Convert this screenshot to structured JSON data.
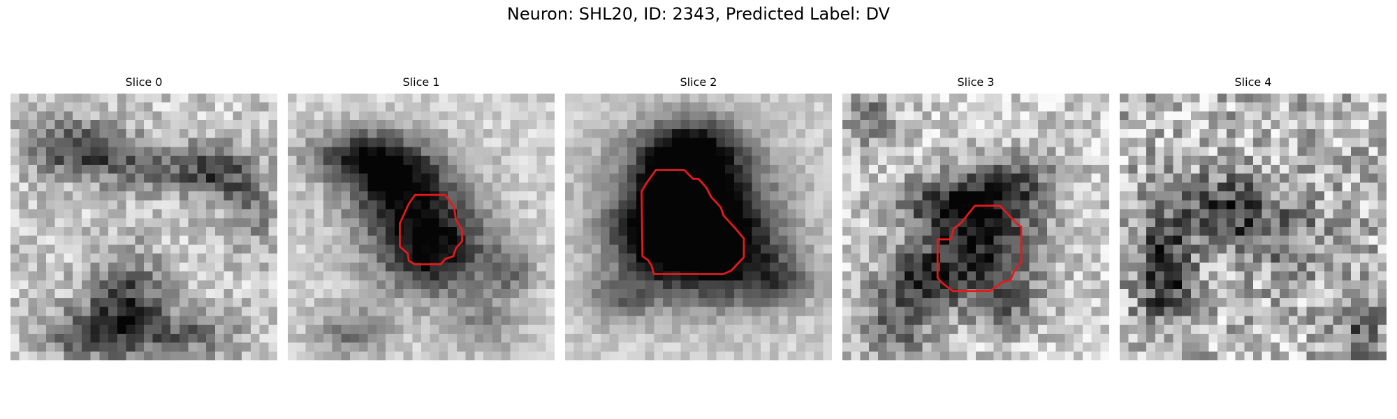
{
  "figure": {
    "title": "Neuron: SHL20, ID: 2343, Predicted Label: DV"
  },
  "panels": [
    {
      "title": "Slice 0",
      "has_contour": false
    },
    {
      "title": "Slice 1",
      "has_contour": true
    },
    {
      "title": "Slice 2",
      "has_contour": true
    },
    {
      "title": "Slice 3",
      "has_contour": true
    },
    {
      "title": "Slice 4",
      "has_contour": false
    }
  ],
  "colors": {
    "contour": "#e41a1c",
    "colormap": "grayscale"
  }
}
